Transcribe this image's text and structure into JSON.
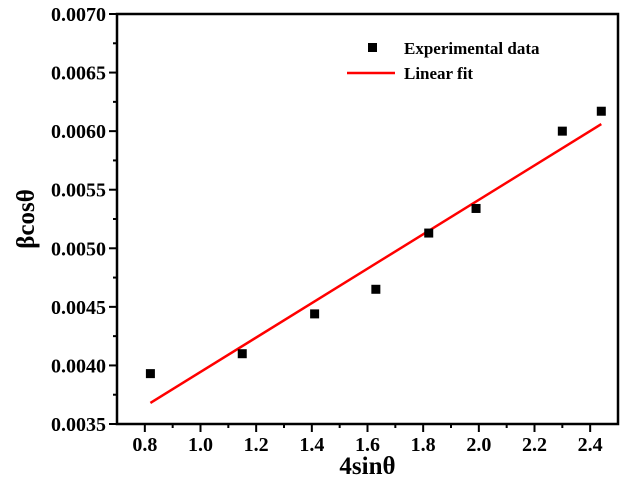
{
  "chart_data": {
    "type": "scatter",
    "xlabel": "4sinθ",
    "ylabel": "βcosθ",
    "xlim": [
      0.7,
      2.5
    ],
    "ylim": [
      0.0035,
      0.007
    ],
    "x_ticks": [
      "0.8",
      "1.0",
      "1.2",
      "1.4",
      "1.6",
      "1.8",
      "2.0",
      "2.2",
      "2.4"
    ],
    "y_ticks": [
      "0.0035",
      "0.0040",
      "0.0045",
      "0.0050",
      "0.0055",
      "0.0060",
      "0.0065",
      "0.0070"
    ],
    "series": [
      {
        "name": "Experimental data",
        "kind": "scatter",
        "marker": "square",
        "color": "#000000",
        "points": [
          {
            "x": 0.82,
            "y": 0.00393
          },
          {
            "x": 1.15,
            "y": 0.0041
          },
          {
            "x": 1.41,
            "y": 0.00444
          },
          {
            "x": 1.63,
            "y": 0.00465
          },
          {
            "x": 1.82,
            "y": 0.00513
          },
          {
            "x": 1.99,
            "y": 0.00534
          },
          {
            "x": 2.3,
            "y": 0.006
          },
          {
            "x": 2.44,
            "y": 0.00617
          }
        ]
      },
      {
        "name": "Linear fit",
        "kind": "line",
        "color": "#ff0000",
        "points": [
          {
            "x": 0.82,
            "y": 0.00368
          },
          {
            "x": 2.44,
            "y": 0.00606
          }
        ]
      }
    ],
    "legend": {
      "position": "top-right"
    },
    "grid": false
  }
}
